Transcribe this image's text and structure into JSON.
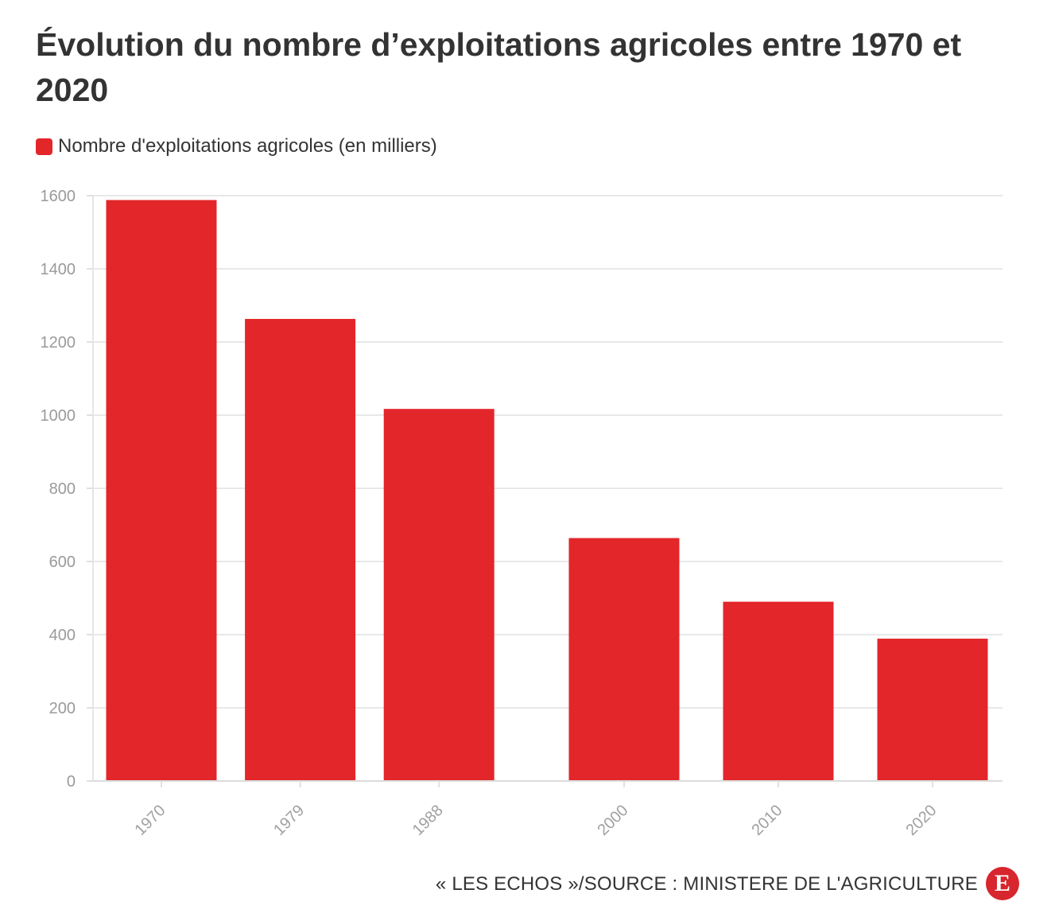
{
  "chart_data": {
    "type": "bar",
    "title": "Évolution du nombre d’exploitations agricoles entre 1970 et 2020",
    "categories": [
      "1970",
      "1979",
      "1988",
      "2000",
      "2010",
      "2020"
    ],
    "series": [
      {
        "name": "Nombre d'exploitations agricoles (en milliers)",
        "values": [
          1588,
          1263,
          1017,
          664,
          490,
          389
        ],
        "color": "#e3262a"
      }
    ],
    "ylim": [
      0,
      1600
    ],
    "yticks": [
      "0",
      "200",
      "400",
      "600",
      "800",
      "1000",
      "1200",
      "1400",
      "1600"
    ],
    "grid": true,
    "legend": "top-left"
  },
  "footer": {
    "source": "« LES ECHOS »/SOURCE : MINISTERE DE L'AGRICULTURE",
    "logo_letter": "E"
  }
}
